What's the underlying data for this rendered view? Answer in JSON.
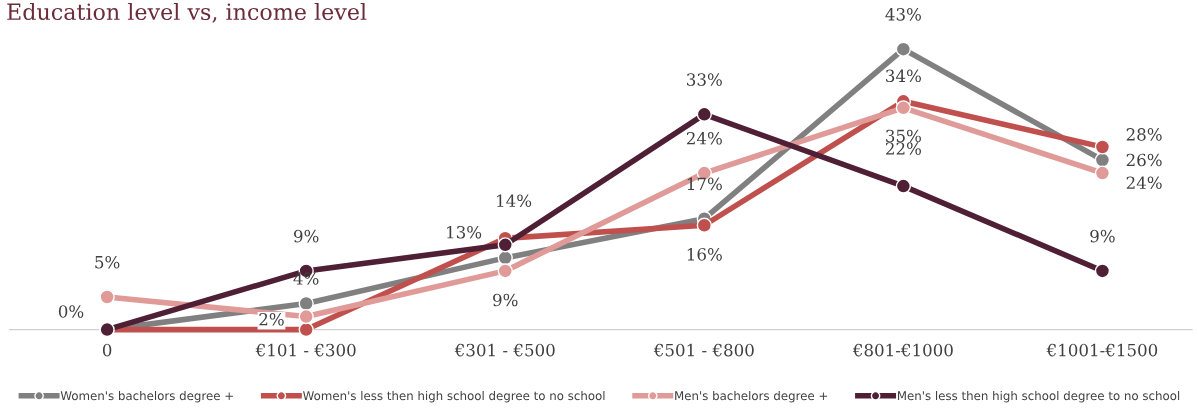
{
  "chart_data": {
    "type": "line",
    "title": "Education level vs, income level",
    "categories": [
      "0",
      "€101 - €300",
      "€301 - €500",
      "€501 - €800",
      "€801-€1000",
      "€1001-€1500"
    ],
    "series": [
      {
        "name": "Women's bachelors degree +",
        "color": "#808080",
        "values": [
          0,
          4,
          11,
          17,
          43,
          26
        ],
        "value_labels": [
          "0%",
          "4%",
          null,
          "17%",
          "43%",
          "26%"
        ]
      },
      {
        "name": "Women's less then high school degree to no school",
        "color": "#c0504d",
        "values": [
          0,
          0,
          14,
          16,
          35,
          28
        ],
        "value_labels": [
          null,
          null,
          "14%",
          "16%",
          "35%",
          "28%"
        ]
      },
      {
        "name": "Men's bachelors degree +",
        "color": "#e09a98",
        "values": [
          5,
          2,
          9,
          24,
          34,
          24
        ],
        "value_labels": [
          "5%",
          "2%",
          "9%",
          "24%",
          "34%",
          "24%"
        ]
      },
      {
        "name": "Men's less then high school degree to no school",
        "color": "#4f2035",
        "values": [
          0,
          9,
          13,
          33,
          22,
          9
        ],
        "value_labels": [
          null,
          "9%",
          "13%",
          "33%",
          "22%",
          "9%"
        ]
      }
    ],
    "legend": "bottom",
    "grid": false,
    "marker": "circle",
    "line_style": "solid"
  }
}
